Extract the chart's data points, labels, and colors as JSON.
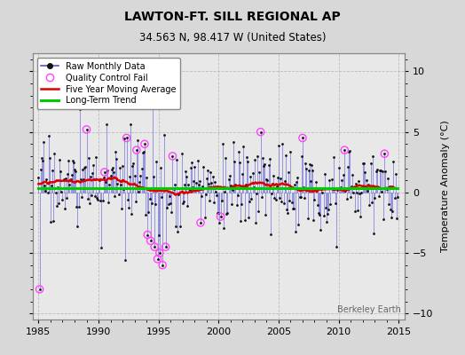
{
  "title": "LAWTON-FT. SILL REGIONAL AP",
  "subtitle": "34.563 N, 98.417 W (United States)",
  "ylabel": "Temperature Anomaly (°C)",
  "watermark": "Berkeley Earth",
  "xlim": [
    1984.5,
    2015.5
  ],
  "ylim": [
    -10.5,
    11.5
  ],
  "yticks": [
    -10,
    -5,
    0,
    5,
    10
  ],
  "xticks": [
    1985,
    1990,
    1995,
    2000,
    2005,
    2010,
    2015
  ],
  "bg_color": "#d8d8d8",
  "plot_bg_color": "#e8e8e8",
  "raw_line_color": "#5555dd",
  "raw_marker_color": "#111111",
  "qc_fail_color": "#ff44ff",
  "moving_avg_color": "#dd0000",
  "trend_color": "#00cc00",
  "trend_value": 0.35,
  "random_seed": 17
}
